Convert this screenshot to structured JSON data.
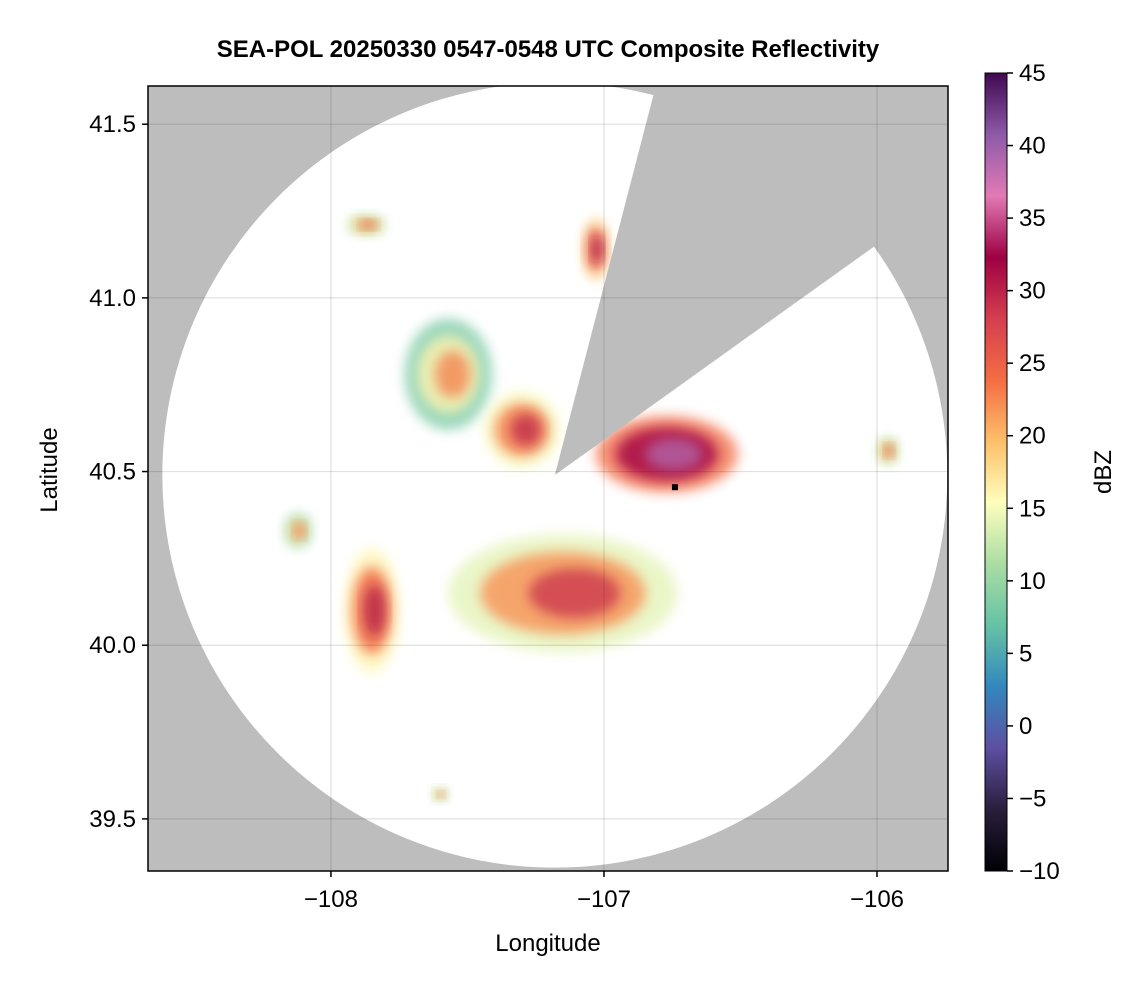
{
  "chart_data": {
    "type": "heatmap",
    "title": "SEA-POL 20250330 0547-0548 UTC Composite Reflectivity",
    "xlabel": "Longitude",
    "ylabel": "Latitude",
    "xlim": [
      -108.67,
      -105.74
    ],
    "ylim": [
      39.35,
      41.61
    ],
    "x_ticks": [
      -108,
      -107,
      -106
    ],
    "x_tick_labels": [
      "−108",
      "−107",
      "−106"
    ],
    "y_ticks": [
      39.5,
      40.0,
      40.5,
      41.0,
      41.5
    ],
    "y_tick_labels": [
      "39.5",
      "40.0",
      "40.5",
      "41.0",
      "41.5"
    ],
    "grid": true,
    "radar_site": {
      "lon": -107.18,
      "lat": 40.49
    },
    "coverage_radius_deg_lat": 1.13,
    "blocked_sectors": [
      {
        "from_lon": -106.84,
        "from_lat": 41.52,
        "to_lon": -106.06,
        "to_lat": 41.12
      }
    ],
    "no_data_color": "#bdbdbd",
    "colorbar": {
      "label": "dBZ",
      "min": -10,
      "max": 45,
      "ticks": [
        -10,
        -5,
        0,
        5,
        10,
        15,
        20,
        25,
        30,
        35,
        40,
        45
      ],
      "tick_labels": [
        "−10",
        "−5",
        "0",
        "5",
        "10",
        "15",
        "20",
        "25",
        "30",
        "35",
        "40",
        "45"
      ],
      "colors": [
        "#000004",
        "#2a1e3c",
        "#5e4fa2",
        "#3288bd",
        "#66c2a5",
        "#abdda4",
        "#fefebd",
        "#fdc06a",
        "#f46d43",
        "#d53e4f",
        "#9e0142",
        "#e17ab5",
        "#8e5aa8",
        "#3f0a52"
      ]
    },
    "echo_regions": [
      {
        "name": "north-central cell",
        "lon": -107.03,
        "lat": 41.14,
        "rx": 0.05,
        "ry": 0.09,
        "dbz": 28
      },
      {
        "name": "northwest small cell",
        "lon": -107.87,
        "lat": 41.21,
        "rx": 0.07,
        "ry": 0.03,
        "dbz": 22
      },
      {
        "name": "northwest band",
        "lon": -107.57,
        "lat": 40.78,
        "rx": 0.16,
        "ry": 0.16,
        "dbz": 18
      },
      {
        "name": "central cell",
        "lon": -107.3,
        "lat": 40.62,
        "rx": 0.14,
        "ry": 0.11,
        "dbz": 25
      },
      {
        "name": "east cell",
        "lon": -106.77,
        "lat": 40.55,
        "rx": 0.26,
        "ry": 0.11,
        "dbz": 34
      },
      {
        "name": "southern complex",
        "lon": -107.15,
        "lat": 40.15,
        "rx": 0.42,
        "ry": 0.17,
        "dbz": 24
      },
      {
        "name": "southwest band",
        "lon": -107.85,
        "lat": 40.1,
        "rx": 0.1,
        "ry": 0.18,
        "dbz": 26
      },
      {
        "name": "west cell",
        "lon": -108.12,
        "lat": 40.33,
        "rx": 0.05,
        "ry": 0.05,
        "dbz": 20
      },
      {
        "name": "far east cell",
        "lon": -105.96,
        "lat": 40.56,
        "rx": 0.04,
        "ry": 0.04,
        "dbz": 22
      },
      {
        "name": "south small cell",
        "lon": -107.6,
        "lat": 39.57,
        "rx": 0.03,
        "ry": 0.02,
        "dbz": 22
      }
    ]
  }
}
